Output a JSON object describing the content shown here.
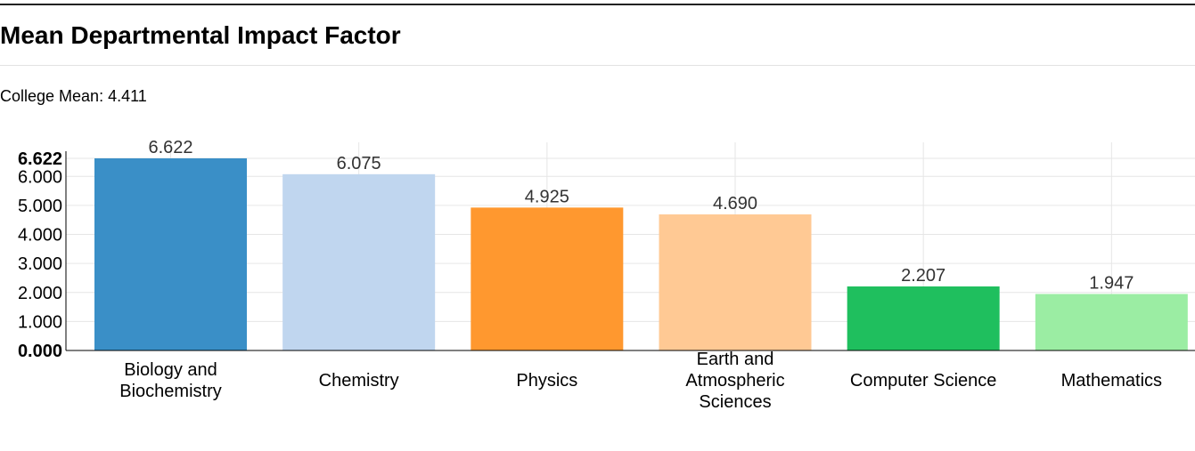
{
  "header": {
    "title": "Mean Departmental Impact Factor",
    "college_mean_label": "College Mean: 4.411"
  },
  "chart_data": {
    "type": "bar",
    "categories": [
      "Biology and Biochemistry",
      "Chemistry",
      "Physics",
      "Earth and Atmospheric Sciences",
      "Computer Science",
      "Mathematics"
    ],
    "category_lines": [
      [
        "Biology and",
        "Biochemistry"
      ],
      [
        "Chemistry"
      ],
      [
        "Physics"
      ],
      [
        "Earth and",
        "Atmospheric",
        "Sciences"
      ],
      [
        "Computer Science"
      ],
      [
        "Mathematics"
      ]
    ],
    "values": [
      6.622,
      6.075,
      4.925,
      4.69,
      2.207,
      1.947
    ],
    "value_labels": [
      "6.622",
      "6.075",
      "4.925",
      "4.690",
      "2.207",
      "1.947"
    ],
    "colors": [
      "#3a8fc7",
      "#c0d6ef",
      "#ff982f",
      "#ffc994",
      "#1fbf5e",
      "#9beda3"
    ],
    "ylim": [
      0,
      6.622
    ],
    "yticks": [
      0,
      1,
      2,
      3,
      4,
      5,
      6,
      6.622
    ],
    "ytick_labels": [
      "0.000",
      "1.000",
      "2.000",
      "3.000",
      "4.000",
      "5.000",
      "6.000",
      "6.622"
    ],
    "bold_ticks": [
      "0.000",
      "6.622"
    ],
    "xlabel": "",
    "ylabel": "",
    "grid": true,
    "legend": "none"
  }
}
